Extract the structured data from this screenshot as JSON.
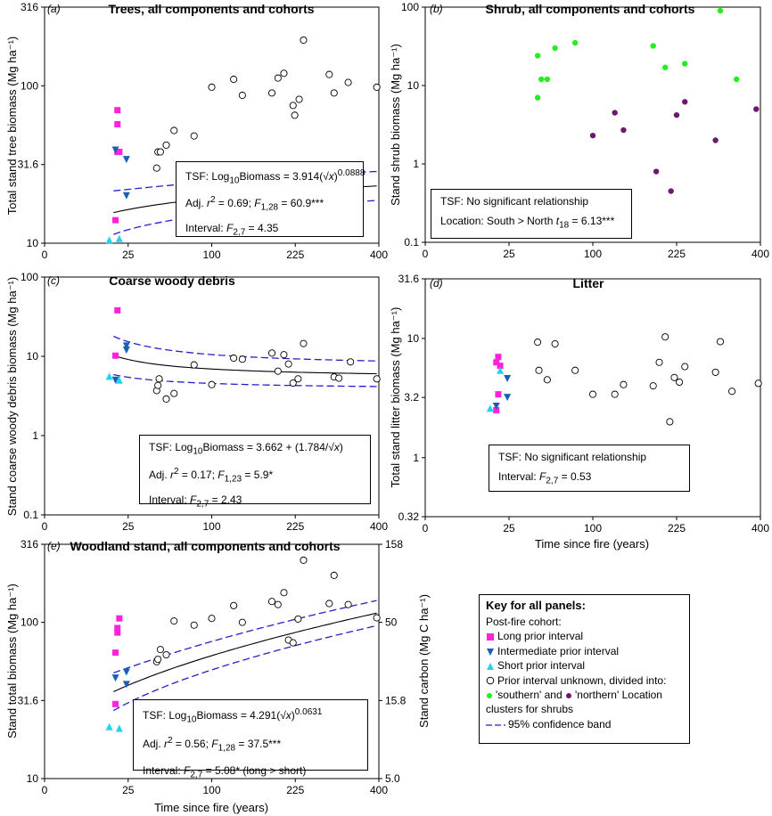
{
  "chart_data": [
    {
      "panel": "(a)",
      "type": "scatter",
      "title": "Trees, all components and cohorts",
      "xlabel": "",
      "ylabel": "Total stand tree biomass (Mg ha⁻¹)",
      "x_scale": "sqrt",
      "y_scale": "log10",
      "xlim": [
        0,
        400
      ],
      "ylim": [
        10,
        316
      ],
      "x_ticks": [
        "0",
        "25",
        "100",
        "225",
        "400"
      ],
      "y_ticks": [
        "10",
        "31.6",
        "100",
        "316"
      ],
      "series": [
        {
          "name": "Long prior interval",
          "points": [
            [
              18,
              14
            ],
            [
              19,
              38
            ],
            [
              19,
              70
            ],
            [
              19,
              57
            ],
            [
              20,
              38
            ]
          ]
        },
        {
          "name": "Intermediate prior interval",
          "points": [
            [
              18,
              39
            ],
            [
              24,
              34
            ],
            [
              24,
              20
            ]
          ]
        },
        {
          "name": "Short prior interval",
          "points": [
            [
              15,
              10.5
            ],
            [
              20,
              10.7
            ]
          ]
        },
        {
          "name": "Prior interval unknown",
          "points": [
            [
              45,
              30
            ],
            [
              46,
              38
            ],
            [
              48,
              38
            ],
            [
              53,
              42
            ],
            [
              60,
              52
            ],
            [
              80,
              48
            ],
            [
              100,
              98
            ],
            [
              128,
              110
            ],
            [
              140,
              87
            ],
            [
              185,
              90
            ],
            [
              195,
              112
            ],
            [
              205,
              120
            ],
            [
              221,
              75
            ],
            [
              224,
              65
            ],
            [
              232,
              82
            ],
            [
              240,
              195
            ],
            [
              290,
              118
            ],
            [
              300,
              90
            ],
            [
              330,
              105
            ],
            [
              395,
              98
            ]
          ]
        }
      ],
      "fit": {
        "label": "TSF: Log10Biomass = 3.914(√x)^0.0888"
      },
      "stats": {
        "line1_prefix": "TSF: Log",
        "line1_sub": "10",
        "line1_mid": "Biomass = 3.914(√",
        "line1_x": "x",
        "line1_end": ")",
        "line1_sup": "0.0888",
        "line2_prefix": "Adj. ",
        "line2_r": "r",
        "line2_sup": "2",
        "line2_mid": " = 0.69; ",
        "line2_F": "F",
        "line2_sub": "1,28",
        "line2_end": " = 60.9***",
        "line3_prefix": "Interval: ",
        "line3_F": "F",
        "line3_sub": "2,7",
        "line3_end": " = 4.35"
      }
    },
    {
      "panel": "(b)",
      "type": "scatter",
      "title": "Shrub, all components and cohorts",
      "ylabel": "Stand shrub biomass (Mg ha⁻¹)",
      "x_scale": "sqrt",
      "y_scale": "log10",
      "xlim": [
        0,
        400
      ],
      "ylim": [
        0.1,
        100
      ],
      "x_ticks": [
        "0",
        "25",
        "100",
        "225",
        "400"
      ],
      "y_ticks": [
        "0.1",
        "1",
        "10",
        "100"
      ],
      "series": [
        {
          "name": "'southern' Location cluster",
          "points": [
            [
              45,
              24
            ],
            [
              45,
              7
            ],
            [
              48,
              12
            ],
            [
              53,
              12
            ],
            [
              60,
              30
            ],
            [
              80,
              35
            ],
            [
              185,
              32
            ],
            [
              205,
              17
            ],
            [
              240,
              19
            ],
            [
              310,
              90
            ],
            [
              345,
              12
            ]
          ]
        },
        {
          "name": "'northern' Location cluster",
          "points": [
            [
              100,
              2.3
            ],
            [
              128,
              4.5
            ],
            [
              140,
              2.7
            ],
            [
              190,
              0.8
            ],
            [
              215,
              0.45
            ],
            [
              225,
              4.2
            ],
            [
              240,
              6.2
            ],
            [
              300,
              2.0
            ],
            [
              390,
              5.0
            ]
          ]
        }
      ],
      "stats": {
        "line1": "TSF: No significant relationship",
        "line2_prefix": "Location: South > North ",
        "line2_t": "t",
        "line2_sub": "18",
        "line2_end": " = 6.13***"
      }
    },
    {
      "panel": "(c)",
      "type": "scatter",
      "title": "Coarse woody debris",
      "ylabel": "Stand coarse woody debris biomass (Mg ha⁻¹)",
      "x_scale": "sqrt",
      "y_scale": "log10",
      "xlim": [
        0,
        400
      ],
      "ylim": [
        0.1,
        100
      ],
      "x_ticks": [
        "0",
        "25",
        "100",
        "225",
        "400"
      ],
      "y_ticks": [
        "0.1",
        "1",
        "10",
        "100"
      ],
      "series": [
        {
          "name": "Long prior interval",
          "points": [
            [
              18,
              10.2
            ],
            [
              19,
              38
            ]
          ]
        },
        {
          "name": "Intermediate prior interval",
          "points": [
            [
              18,
              5.0
            ],
            [
              24,
              12
            ],
            [
              24,
              13.5
            ]
          ]
        },
        {
          "name": "Short prior interval",
          "points": [
            [
              15,
              5.6
            ],
            [
              20,
              5.0
            ]
          ]
        },
        {
          "name": "Prior interval unknown",
          "points": [
            [
              45,
              3.7
            ],
            [
              46,
              4.3
            ],
            [
              47,
              5.2
            ],
            [
              53,
              2.9
            ],
            [
              60,
              3.4
            ],
            [
              80,
              7.8
            ],
            [
              100,
              4.4
            ],
            [
              128,
              9.5
            ],
            [
              140,
              9.2
            ],
            [
              185,
              11
            ],
            [
              195,
              6.5
            ],
            [
              205,
              10.5
            ],
            [
              213,
              8
            ],
            [
              221,
              4.6
            ],
            [
              230,
              5.2
            ],
            [
              240,
              14.5
            ],
            [
              300,
              5.5
            ],
            [
              310,
              5.3
            ],
            [
              335,
              8.5
            ],
            [
              395,
              5.2
            ]
          ]
        }
      ],
      "stats": {
        "line1_prefix": "TSF: Log",
        "line1_sub": "10",
        "line1_mid": "Biomass = 3.662 + (1.784/√",
        "line1_x": "x",
        "line1_end": ")",
        "line2_prefix": "Adj. ",
        "line2_r": "r",
        "line2_sup": "2",
        "line2_mid": " = 0.17; ",
        "line2_F": "F",
        "line2_sub": "1,23",
        "line2_end": " = 5.9*",
        "line3_prefix": "Interval: ",
        "line3_F": "F",
        "line3_sub": "2,7",
        "line3_end": " = 2.43"
      }
    },
    {
      "panel": "(d)",
      "type": "scatter",
      "title": "Litter",
      "xlabel": "Time since fire (years)",
      "ylabel": "Total stand litter biomass (Mg ha⁻¹)",
      "x_scale": "sqrt",
      "y_scale": "log10",
      "xlim": [
        0,
        400
      ],
      "ylim": [
        0.32,
        31.6
      ],
      "x_ticks": [
        "0",
        "25",
        "100",
        "225",
        "400"
      ],
      "y_ticks": [
        "0.32",
        "1",
        "3.2",
        "10",
        "31.6"
      ],
      "series": [
        {
          "name": "Long prior interval",
          "points": [
            [
              18,
              2.5
            ],
            [
              18,
              6.3
            ],
            [
              19,
              3.4
            ],
            [
              19,
              7.0
            ],
            [
              20,
              5.9
            ]
          ]
        },
        {
          "name": "Intermediate prior interval",
          "points": [
            [
              18,
              2.7
            ],
            [
              24,
              4.6
            ],
            [
              24,
              3.2
            ]
          ]
        },
        {
          "name": "Short prior interval",
          "points": [
            [
              15,
              2.6
            ],
            [
              20,
              5.4
            ]
          ]
        },
        {
          "name": "Prior interval unknown",
          "points": [
            [
              45,
              9.3
            ],
            [
              46,
              5.4
            ],
            [
              53,
              4.5
            ],
            [
              60,
              9.0
            ],
            [
              80,
              5.4
            ],
            [
              100,
              3.4
            ],
            [
              128,
              3.4
            ],
            [
              140,
              4.1
            ],
            [
              185,
              4.0
            ],
            [
              195,
              6.3
            ],
            [
              205,
              10.3
            ],
            [
              213,
              2.0
            ],
            [
              221,
              4.7
            ],
            [
              230,
              4.3
            ],
            [
              240,
              5.8
            ],
            [
              300,
              5.2
            ],
            [
              310,
              9.4
            ],
            [
              335,
              3.6
            ],
            [
              395,
              4.2
            ]
          ]
        }
      ],
      "stats": {
        "line1": "TSF: No significant relationship",
        "line2_prefix": "Interval: ",
        "line2_F": "F",
        "line2_sub": "2,7",
        "line2_end": " = 0.53"
      }
    },
    {
      "panel": "(e)",
      "type": "scatter",
      "title": "Woodland stand, all components and cohorts",
      "xlabel": "Time since fire (years)",
      "ylabel": "Stand total biomass (Mg ha⁻¹)",
      "y2label": "Stand carbon (Mg C ha⁻¹)",
      "x_scale": "sqrt",
      "y_scale": "log10",
      "xlim": [
        0,
        400
      ],
      "ylim": [
        10,
        316
      ],
      "x_ticks": [
        "0",
        "25",
        "100",
        "225",
        "400"
      ],
      "y_ticks": [
        "10",
        "31.6",
        "100",
        "316"
      ],
      "y2_ticks": [
        "5.0",
        "15.8",
        "50",
        "158"
      ],
      "series": [
        {
          "name": "Long prior interval",
          "points": [
            [
              18,
              30
            ],
            [
              18,
              64
            ],
            [
              19,
              86
            ],
            [
              19,
              92
            ],
            [
              20,
              106
            ]
          ]
        },
        {
          "name": "Intermediate prior interval",
          "points": [
            [
              18,
              44
            ],
            [
              24,
              48
            ],
            [
              24,
              40
            ]
          ]
        },
        {
          "name": "Short prior interval",
          "points": [
            [
              15,
              21.5
            ],
            [
              20,
              21
            ]
          ]
        },
        {
          "name": "Prior interval unknown",
          "points": [
            [
              45,
              56
            ],
            [
              46,
              58
            ],
            [
              48,
              67
            ],
            [
              53,
              62
            ],
            [
              60,
              102
            ],
            [
              80,
              96
            ],
            [
              100,
              106
            ],
            [
              128,
              128
            ],
            [
              140,
              100
            ],
            [
              185,
              136
            ],
            [
              195,
              130
            ],
            [
              205,
              155
            ],
            [
              213,
              77
            ],
            [
              221,
              74
            ],
            [
              230,
              105
            ],
            [
              240,
              250
            ],
            [
              290,
              132
            ],
            [
              300,
              200
            ],
            [
              330,
              130
            ],
            [
              395,
              107
            ]
          ]
        }
      ],
      "stats": {
        "line1_prefix": "TSF: Log",
        "line1_sub": "10",
        "line1_mid": "Biomass = 4.291(√",
        "line1_x": "x",
        "line1_end": ")",
        "line1_sup": "0.0631",
        "line2_prefix": "Adj. ",
        "line2_r": "r",
        "line2_sup": "2",
        "line2_mid": " = 0.56; ",
        "line2_F": "F",
        "line2_sub": "1,28",
        "line2_end": " = 37.5***",
        "line3_prefix": "Interval: ",
        "line3_F": "F",
        "line3_sub": "2,7",
        "line3_end": " = 5.08* (long > short)"
      }
    }
  ],
  "key": {
    "title": "Key for all panels:",
    "subtitle": "Post-fire cohort:",
    "items": [
      "Long prior interval",
      "Intermediate prior interval",
      "Short prior interval",
      "Prior interval unknown, divided into:"
    ],
    "location_southern": "'southern' and",
    "location_northern": "'northern' Location",
    "location_end": "clusters for shrubs",
    "band": "95% confidence band"
  },
  "colors": {
    "long": "#ff22dd",
    "intermediate": "#1a5fb4",
    "short": "#22d3ee",
    "southern": "#22ee22",
    "northern": "#6b1a6e",
    "band": "#2222cc",
    "fit": "#000000"
  }
}
